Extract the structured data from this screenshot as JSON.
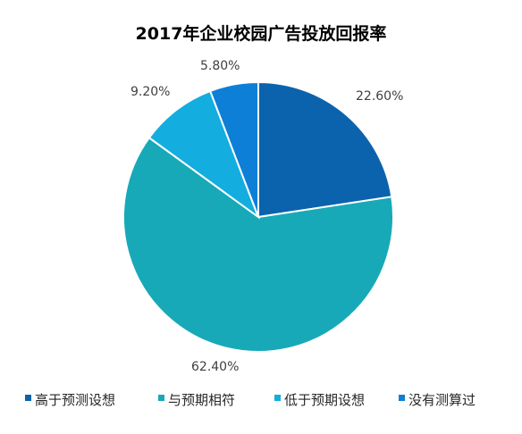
{
  "chart_data": {
    "type": "pie",
    "title": "2017年企业校园广告投放回报率",
    "slices": [
      {
        "label": "高于预测设想",
        "value": 22.6,
        "display": "22.60%",
        "color": "#0b63ad"
      },
      {
        "label": "与预期相符",
        "value": 62.4,
        "display": "62.40%",
        "color": "#17a9b8"
      },
      {
        "label": "低于预期设想",
        "value": 9.2,
        "display": "9.20%",
        "color": "#13ade0"
      },
      {
        "label": "没有测算过",
        "value": 5.8,
        "display": "5.80%",
        "color": "#0d7fd6"
      }
    ],
    "start_angle": "12 o'clock",
    "direction": "clockwise",
    "slice_border_color": "#ffffff",
    "legend_position": "bottom"
  }
}
